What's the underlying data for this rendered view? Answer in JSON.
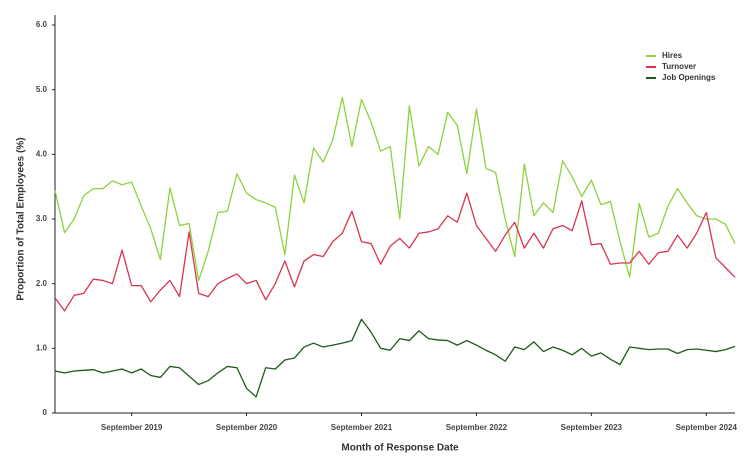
{
  "chart_data": {
    "type": "line",
    "ylabel": "Proportion of Total Employees (%)",
    "xlabel": "Month of Response Date",
    "x": [
      "2019-01",
      "2019-02",
      "2019-03",
      "2019-04",
      "2019-05",
      "2019-06",
      "2019-07",
      "2019-08",
      "2019-09",
      "2019-10",
      "2019-11",
      "2019-12",
      "2020-01",
      "2020-02",
      "2020-03",
      "2020-04",
      "2020-05",
      "2020-06",
      "2020-07",
      "2020-08",
      "2020-09",
      "2020-10",
      "2020-11",
      "2020-12",
      "2021-01",
      "2021-02",
      "2021-03",
      "2021-04",
      "2021-05",
      "2021-06",
      "2021-07",
      "2021-08",
      "2021-09",
      "2021-10",
      "2021-11",
      "2021-12",
      "2022-01",
      "2022-02",
      "2022-03",
      "2022-04",
      "2022-05",
      "2022-06",
      "2022-07",
      "2022-08",
      "2022-09",
      "2022-10",
      "2022-11",
      "2022-12",
      "2023-01",
      "2023-02",
      "2023-03",
      "2023-04",
      "2023-05",
      "2023-06",
      "2023-07",
      "2023-08",
      "2023-09",
      "2023-10",
      "2023-11",
      "2023-12",
      "2024-01",
      "2024-02",
      "2024-03",
      "2024-04",
      "2024-05",
      "2024-06",
      "2024-07",
      "2024-08",
      "2024-09",
      "2024-10",
      "2024-11",
      "2024-12"
    ],
    "xticks": [
      {
        "value": "2019-09",
        "label": "September 2019"
      },
      {
        "value": "2020-09",
        "label": "September 2020"
      },
      {
        "value": "2021-09",
        "label": "September 2021"
      },
      {
        "value": "2022-09",
        "label": "September 2022"
      },
      {
        "value": "2023-09",
        "label": "September 2023"
      },
      {
        "value": "2024-09",
        "label": "September 2024"
      }
    ],
    "ylim": [
      0,
      6
    ],
    "yticks": [
      0,
      {
        "value": 1,
        "label": "1.0"
      },
      {
        "value": 2,
        "label": "2.0"
      },
      {
        "value": 3,
        "label": "3.0"
      },
      {
        "value": 4,
        "label": "4.0"
      },
      {
        "value": 5,
        "label": "5.0"
      },
      {
        "value": 6,
        "label": "6.0"
      }
    ],
    "legend": "upper right",
    "series": [
      {
        "name": "Hires",
        "color": "#8fd13f",
        "values": [
          3.44,
          2.79,
          3.0,
          3.36,
          3.47,
          3.47,
          3.59,
          3.53,
          3.57,
          3.2,
          2.85,
          2.37,
          3.48,
          2.9,
          2.93,
          2.05,
          2.5,
          3.1,
          3.12,
          3.7,
          3.4,
          3.3,
          3.25,
          3.18,
          2.45,
          3.68,
          3.25,
          4.1,
          3.88,
          4.22,
          4.88,
          4.12,
          4.85,
          4.5,
          4.05,
          4.12,
          3.0,
          4.75,
          3.82,
          4.12,
          4.0,
          4.65,
          4.45,
          3.7,
          4.7,
          3.78,
          3.72,
          3.0,
          2.42,
          3.85,
          3.05,
          3.25,
          3.1,
          3.9,
          3.65,
          3.35,
          3.6,
          3.22,
          3.27,
          2.65,
          2.1,
          3.24,
          2.72,
          2.78,
          3.2,
          3.47,
          3.25,
          3.05,
          3.0,
          3.0,
          2.92,
          2.62
        ]
      },
      {
        "name": "Turnover",
        "color": "#d9344f",
        "values": [
          1.78,
          1.58,
          1.82,
          1.85,
          2.07,
          2.05,
          2.0,
          2.52,
          1.97,
          1.97,
          1.72,
          1.9,
          2.05,
          1.8,
          2.8,
          1.85,
          1.8,
          2.0,
          2.08,
          2.15,
          2.0,
          2.05,
          1.75,
          2.0,
          2.35,
          1.95,
          2.35,
          2.45,
          2.42,
          2.65,
          2.78,
          3.12,
          2.65,
          2.62,
          2.3,
          2.58,
          2.7,
          2.55,
          2.78,
          2.8,
          2.85,
          3.05,
          2.95,
          3.4,
          2.9,
          2.7,
          2.5,
          2.75,
          2.95,
          2.55,
          2.78,
          2.55,
          2.85,
          2.9,
          2.82,
          3.28,
          2.6,
          2.62,
          2.3,
          2.32,
          2.32,
          2.5,
          2.3,
          2.48,
          2.5,
          2.75,
          2.55,
          2.78,
          3.1,
          2.4,
          2.25,
          2.1
        ]
      },
      {
        "name": "Job Openings",
        "color": "#1f5a1a",
        "values": [
          0.65,
          0.62,
          0.65,
          0.66,
          0.67,
          0.62,
          0.65,
          0.68,
          0.62,
          0.68,
          0.58,
          0.55,
          0.72,
          0.7,
          0.57,
          0.44,
          0.5,
          0.62,
          0.72,
          0.7,
          0.38,
          0.25,
          0.7,
          0.68,
          0.82,
          0.85,
          1.02,
          1.08,
          1.02,
          1.05,
          1.08,
          1.12,
          1.45,
          1.25,
          1.0,
          0.97,
          1.15,
          1.12,
          1.27,
          1.15,
          1.13,
          1.12,
          1.05,
          1.12,
          1.05,
          0.97,
          0.9,
          0.8,
          1.02,
          0.98,
          1.1,
          0.95,
          1.02,
          0.97,
          0.9,
          1.0,
          0.88,
          0.93,
          0.83,
          0.75,
          1.02,
          1.0,
          0.98,
          0.99,
          0.99,
          0.92,
          0.98,
          0.99,
          0.97,
          0.95,
          0.98,
          1.03
        ]
      }
    ]
  }
}
